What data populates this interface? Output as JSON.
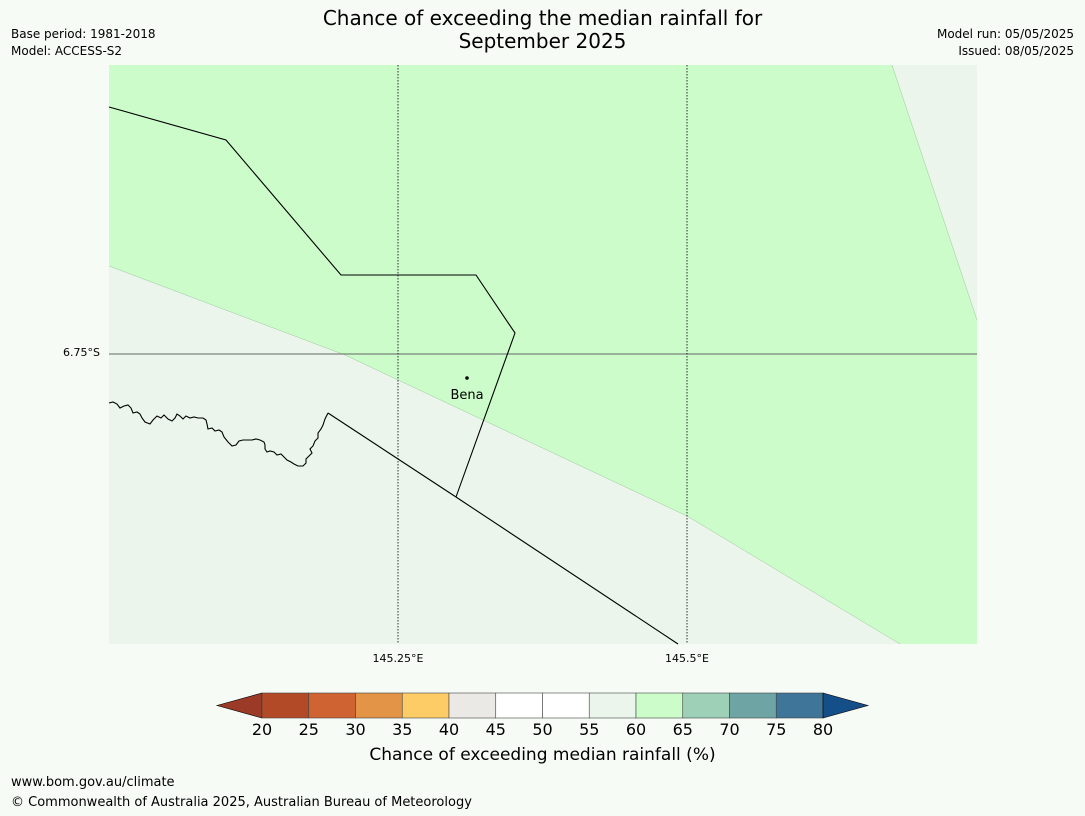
{
  "header": {
    "title_line1": "Chance of exceeding the median rainfall for",
    "title_line2": "September 2025",
    "base_period": "Base period: 1981-2018",
    "model": "Model: ACCESS-S2",
    "model_run": "Model run: 05/05/2025",
    "issued": "Issued: 08/05/2025"
  },
  "map": {
    "lat_label": "6.75°S",
    "lon_labels": [
      "145.25°E",
      "145.5°E"
    ],
    "place": "Bena",
    "colors": {
      "band_60_65": "#cbfcca",
      "band_55_60": "#ebf5eb",
      "boundary": "#000000"
    }
  },
  "colorbar": {
    "ticks": [
      "20",
      "25",
      "30",
      "35",
      "40",
      "45",
      "50",
      "55",
      "60",
      "65",
      "70",
      "75",
      "80"
    ],
    "colors": [
      "#9b3a26",
      "#b24a28",
      "#cf6332",
      "#e49446",
      "#fecc66",
      "#ebe9e5",
      "#ffffff",
      "#ffffff",
      "#ebf5eb",
      "#cbfcca",
      "#9ed0b8",
      "#6ea4a4",
      "#3f7598",
      "#154f89"
    ],
    "label": "Chance of exceeding median rainfall (%)"
  },
  "footer": {
    "url": "www.bom.gov.au/climate",
    "copyright": "© Commonwealth of Australia 2025, Australian Bureau of Meteorology"
  }
}
